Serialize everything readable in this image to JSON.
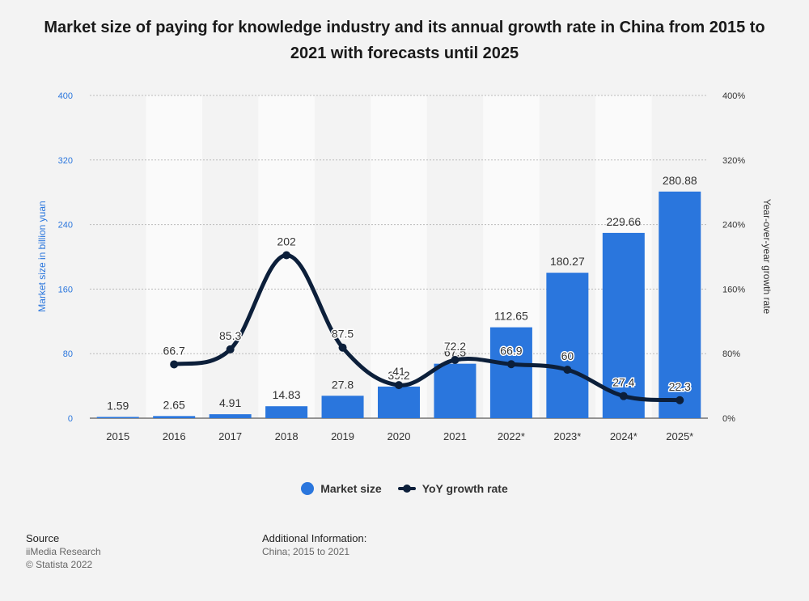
{
  "title": "Market size of paying for knowledge industry and its annual growth rate in China from 2015 to 2021 with forecasts until 2025",
  "chart_data": {
    "type": "bar",
    "categories": [
      "2015",
      "2016",
      "2017",
      "2018",
      "2019",
      "2020",
      "2021",
      "2022*",
      "2023*",
      "2024*",
      "2025*"
    ],
    "series": [
      {
        "name": "Market size",
        "type": "bar",
        "axis": "left",
        "values": [
          1.59,
          2.65,
          4.91,
          14.83,
          27.8,
          39.2,
          67.5,
          112.65,
          180.27,
          229.66,
          280.88
        ],
        "labels": [
          "1.59",
          "2.65",
          "4.91",
          "14.83",
          "27.8",
          "39.2",
          "67.5",
          "112.65",
          "180.27",
          "229.66",
          "280.88"
        ]
      },
      {
        "name": "YoY growth rate",
        "type": "line",
        "axis": "right",
        "values": [
          null,
          66.7,
          85.3,
          202,
          87.5,
          41,
          72.2,
          66.9,
          60,
          27.4,
          22.3
        ],
        "labels": [
          "",
          "66.7",
          "85.3",
          "202",
          "87.5",
          "41",
          "72.2",
          "66.9",
          "60",
          "27.4",
          "22.3"
        ]
      }
    ],
    "ylabel": "Market size in billion yuan",
    "y2label": "Year-over-year growth rate",
    "ylim": [
      0,
      400
    ],
    "y2lim": [
      0,
      400
    ],
    "yticks": [
      "0",
      "80",
      "160",
      "240",
      "320",
      "400"
    ],
    "y2ticks": [
      "0%",
      "80%",
      "160%",
      "240%",
      "320%",
      "400%"
    ],
    "legend_position": "bottom"
  },
  "legend": {
    "bar_label": "Market size",
    "line_label": "YoY growth rate"
  },
  "source": {
    "heading": "Source",
    "line1": "iiMedia Research",
    "line2": "© Statista 2022"
  },
  "additional_info": {
    "heading": "Additional Information:",
    "line1": "China; 2015 to 2021"
  },
  "colors": {
    "bar": "#2a76dd",
    "line": "#0c1f3a",
    "left_axis_text": "#2a76dd",
    "right_axis_text": "#333333",
    "alt_band": "#fafafa",
    "grid": "#bbbbbb"
  }
}
